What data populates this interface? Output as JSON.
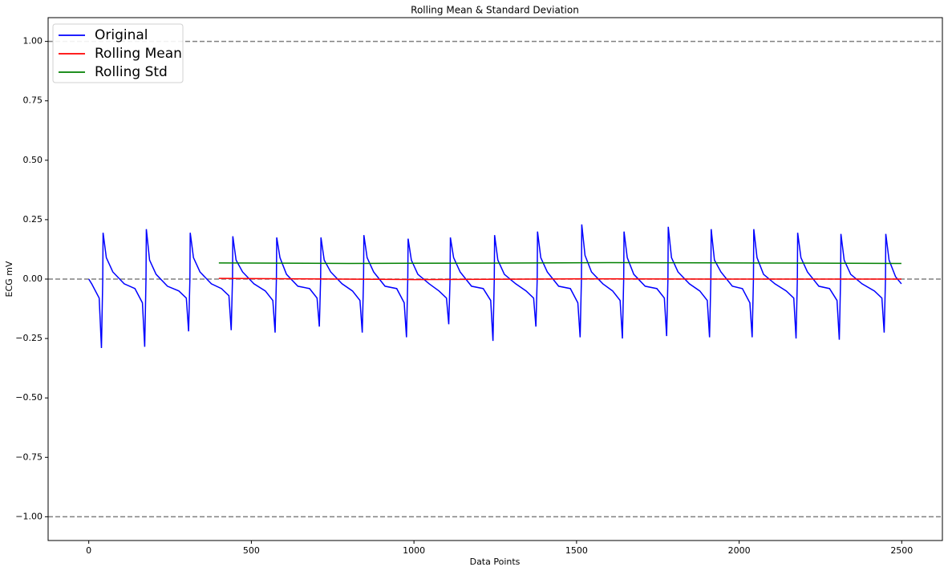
{
  "chart_data": {
    "type": "line",
    "title": "Rolling Mean & Standard Deviation",
    "x_label": "Data Points",
    "y_label": "ECG mV",
    "xlim": [
      -125,
      2625
    ],
    "ylim": [
      -1.1,
      1.1
    ],
    "xticks": [
      0,
      500,
      1000,
      1500,
      2000,
      2500
    ],
    "yticks": [
      {
        "value": -1,
        "label": "−1.00"
      },
      {
        "value": -0.75,
        "label": "−0.75"
      },
      {
        "value": -0.5,
        "label": "−0.50"
      },
      {
        "value": -0.25,
        "label": "−0.25"
      },
      {
        "value": 0,
        "label": "0.00"
      },
      {
        "value": 0.25,
        "label": "0.25"
      },
      {
        "value": 0.5,
        "label": "0.50"
      },
      {
        "value": 0.75,
        "label": "0.75"
      },
      {
        "value": 1,
        "label": "1.00"
      }
    ],
    "hlines": [
      -1,
      0,
      1
    ],
    "hline_color": "#808080",
    "legend": "upper left",
    "series": [
      {
        "name": "Original",
        "color": "#0000ff",
        "x": [
          0,
          9,
          32,
          39,
          43,
          44,
          54,
          74,
          109,
          142,
          165,
          172,
          176,
          177,
          187,
          207,
          242,
          277,
          300,
          307,
          311,
          312,
          322,
          342,
          377,
          408,
          431,
          438,
          442,
          443,
          453,
          473,
          508,
          543,
          566,
          573,
          577,
          578,
          588,
          608,
          643,
          679,
          702,
          709,
          713,
          714,
          724,
          744,
          779,
          811,
          834,
          841,
          845,
          846,
          856,
          876,
          911,
          947,
          970,
          977,
          981,
          982,
          992,
          1012,
          1047,
          1077,
          1100,
          1107,
          1111,
          1112,
          1122,
          1142,
          1177,
          1213,
          1236,
          1243,
          1247,
          1248,
          1258,
          1278,
          1313,
          1345,
          1368,
          1375,
          1379,
          1380,
          1390,
          1410,
          1445,
          1481,
          1504,
          1511,
          1515,
          1516,
          1526,
          1546,
          1581,
          1611,
          1634,
          1641,
          1645,
          1646,
          1656,
          1676,
          1711,
          1747,
          1770,
          1777,
          1781,
          1782,
          1792,
          1812,
          1847,
          1879,
          1902,
          1909,
          1913,
          1914,
          1924,
          1944,
          1979,
          2010,
          2033,
          2040,
          2044,
          2045,
          2055,
          2075,
          2110,
          2145,
          2168,
          2175,
          2179,
          2180,
          2190,
          2210,
          2245,
          2278,
          2301,
          2308,
          2312,
          2313,
          2323,
          2343,
          2378,
          2416,
          2439,
          2446,
          2450,
          2451,
          2461,
          2481,
          2499
        ],
        "values": [
          0,
          -0.02,
          -0.08,
          -0.29,
          0.0,
          0.195,
          0.09,
          0.03,
          -0.02,
          -0.04,
          -0.1,
          -0.285,
          0.0,
          0.21,
          0.08,
          0.02,
          -0.03,
          -0.05,
          -0.08,
          -0.22,
          0.0,
          0.195,
          0.09,
          0.03,
          -0.02,
          -0.04,
          -0.07,
          -0.215,
          0.0,
          0.18,
          0.08,
          0.03,
          -0.02,
          -0.05,
          -0.09,
          -0.225,
          0.0,
          0.175,
          0.09,
          0.02,
          -0.03,
          -0.04,
          -0.08,
          -0.2,
          0.0,
          0.175,
          0.08,
          0.03,
          -0.02,
          -0.05,
          -0.09,
          -0.225,
          0.0,
          0.185,
          0.09,
          0.03,
          -0.03,
          -0.04,
          -0.1,
          -0.245,
          0.0,
          0.17,
          0.08,
          0.02,
          -0.02,
          -0.05,
          -0.08,
          -0.19,
          0.0,
          0.175,
          0.09,
          0.03,
          -0.03,
          -0.04,
          -0.09,
          -0.26,
          0.0,
          0.185,
          0.08,
          0.02,
          -0.02,
          -0.05,
          -0.08,
          -0.2,
          0.0,
          0.2,
          0.09,
          0.03,
          -0.03,
          -0.04,
          -0.1,
          -0.245,
          0.0,
          0.23,
          0.1,
          0.03,
          -0.02,
          -0.05,
          -0.09,
          -0.25,
          0.0,
          0.2,
          0.09,
          0.02,
          -0.03,
          -0.04,
          -0.08,
          -0.24,
          0.0,
          0.22,
          0.09,
          0.03,
          -0.02,
          -0.05,
          -0.09,
          -0.245,
          0.0,
          0.21,
          0.08,
          0.03,
          -0.03,
          -0.04,
          -0.1,
          -0.245,
          0.0,
          0.21,
          0.09,
          0.02,
          -0.02,
          -0.05,
          -0.08,
          -0.25,
          0.0,
          0.195,
          0.09,
          0.03,
          -0.03,
          -0.04,
          -0.09,
          -0.255,
          0.0,
          0.19,
          0.08,
          0.02,
          -0.02,
          -0.05,
          -0.08,
          -0.225,
          0.0,
          0.19,
          0.08,
          0.01,
          -0.02
        ]
      },
      {
        "name": "Rolling Mean",
        "color": "#ff0000",
        "x": [
          400,
          1000,
          1500,
          2000,
          2499
        ],
        "values": [
          0.003,
          -0.002,
          0.001,
          0.0,
          0.0
        ]
      },
      {
        "name": "Rolling Std",
        "color": "#008000",
        "x": [
          400,
          800,
          1200,
          1600,
          2000,
          2499
        ],
        "values": [
          0.068,
          0.066,
          0.067,
          0.069,
          0.068,
          0.066
        ]
      }
    ]
  }
}
